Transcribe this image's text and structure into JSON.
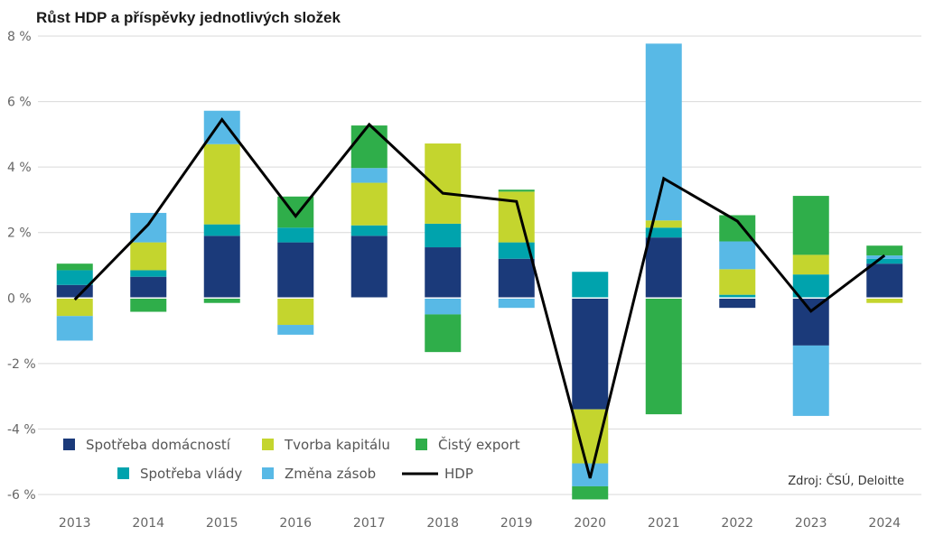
{
  "chart_data": {
    "type": "bar",
    "title": "Růst HDP a příspěvky jednotlivých složek",
    "source": "Zdroj: ČSÚ, Deloitte",
    "categories": [
      "2013",
      "2014",
      "2015",
      "2016",
      "2017",
      "2018",
      "2019",
      "2020",
      "2021",
      "2022",
      "2023",
      "2024"
    ],
    "ylim": [
      -6,
      8
    ],
    "yticks": [
      8,
      6,
      4,
      2,
      0,
      -2,
      -4,
      -6
    ],
    "ytick_labels": [
      "8 %",
      "6 %",
      "4 %",
      "2 %",
      "0 %",
      "-2 %",
      "-4 %",
      "-6 %"
    ],
    "grid": true,
    "legend_position": "bottom-left",
    "series": [
      {
        "name": "Spotřeba domácností",
        "color": "#1b3a7a",
        "values": [
          0.4,
          0.65,
          1.9,
          1.7,
          1.9,
          1.55,
          1.2,
          -3.4,
          1.85,
          -0.3,
          -1.45,
          1.05
        ]
      },
      {
        "name": "Spotřeba vlády",
        "color": "#00a3ad",
        "values": [
          0.45,
          0.2,
          0.35,
          0.45,
          0.32,
          0.72,
          0.5,
          0.8,
          0.3,
          0.1,
          0.72,
          0.15
        ]
      },
      {
        "name": "Tvorba kapitálu",
        "color": "#c4d52e",
        "values": [
          -0.55,
          0.85,
          2.45,
          -0.82,
          1.3,
          2.45,
          1.55,
          -1.65,
          0.22,
          0.78,
          0.6,
          -0.15
        ]
      },
      {
        "name": "Změna zásob",
        "color": "#58b9e6",
        "values": [
          -0.75,
          0.9,
          1.02,
          -0.3,
          0.45,
          -0.5,
          -0.3,
          -0.7,
          5.4,
          0.85,
          -2.15,
          0.1
        ]
      },
      {
        "name": "Čistý export",
        "color": "#2fae4a",
        "values": [
          0.2,
          -0.42,
          -0.15,
          0.95,
          1.3,
          -1.15,
          0.06,
          -0.4,
          -3.55,
          0.8,
          1.8,
          0.3
        ]
      }
    ],
    "line": {
      "name": "HDP",
      "color": "#000000",
      "values": [
        -0.05,
        2.25,
        5.45,
        2.5,
        5.3,
        3.2,
        2.95,
        -5.5,
        3.65,
        2.35,
        -0.4,
        1.3
      ]
    },
    "legend_rows": [
      [
        "Spotřeba domácností",
        "Tvorba kapitálu",
        "Čistý export"
      ],
      [
        "Spotřeba vlády",
        "Změna zásob",
        "HDP"
      ]
    ]
  }
}
